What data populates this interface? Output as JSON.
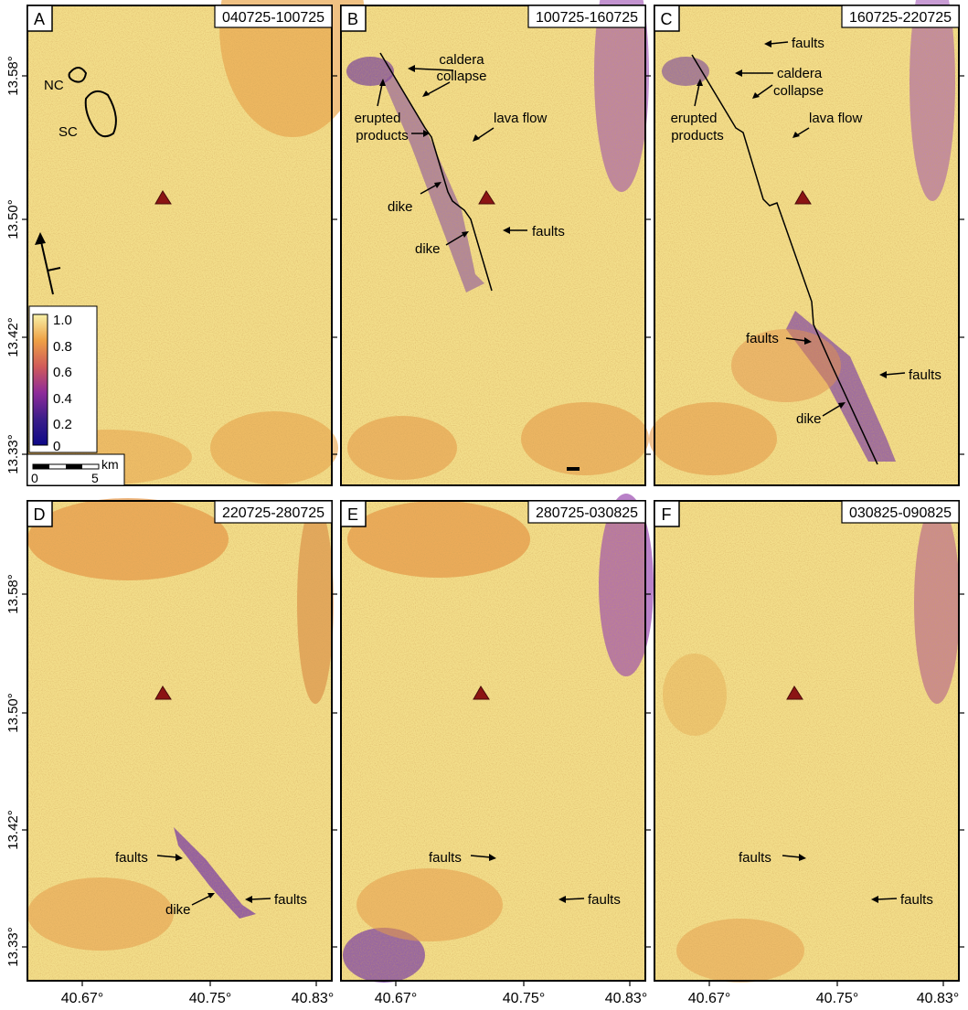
{
  "figure": {
    "x_ticks": [
      "40.67°",
      "40.75°",
      "40.83°"
    ],
    "y_ticks": [
      "13.58°",
      "13.50°",
      "13.42°",
      "13.33°"
    ],
    "colorbar": {
      "ticks": [
        "1.0",
        "0.8",
        "0.6",
        "0.4",
        "0.2",
        "0"
      ]
    },
    "scalebar": {
      "start": "0",
      "mid": "5",
      "unit": "km"
    },
    "colors": {
      "high": "#f6ea9a",
      "mid": "#e8a845",
      "low": "#7a3fa8",
      "volcano": "#8b1414"
    },
    "panels": [
      {
        "letter": "A",
        "date": "040725-100725",
        "labels": [
          {
            "text": "NC"
          },
          {
            "text": "SC"
          }
        ]
      },
      {
        "letter": "B",
        "date": "100725-160725",
        "labels": [
          {
            "text": "caldera"
          },
          {
            "text": "collapse"
          },
          {
            "text": "erupted"
          },
          {
            "text": "products"
          },
          {
            "text": "lava flow"
          },
          {
            "text": "dike"
          },
          {
            "text": "dike"
          },
          {
            "text": "faults"
          }
        ]
      },
      {
        "letter": "C",
        "date": "160725-220725",
        "labels": [
          {
            "text": "faults"
          },
          {
            "text": "caldera"
          },
          {
            "text": "collapse"
          },
          {
            "text": "erupted"
          },
          {
            "text": "products"
          },
          {
            "text": "lava flow"
          },
          {
            "text": "faults"
          },
          {
            "text": "faults"
          },
          {
            "text": "dike"
          }
        ]
      },
      {
        "letter": "D",
        "date": "220725-280725",
        "labels": [
          {
            "text": "faults"
          },
          {
            "text": "dike"
          },
          {
            "text": "faults"
          }
        ]
      },
      {
        "letter": "E",
        "date": "280725-030825",
        "labels": [
          {
            "text": "faults"
          },
          {
            "text": "faults"
          }
        ]
      },
      {
        "letter": "F",
        "date": "030825-090825",
        "labels": [
          {
            "text": "faults"
          },
          {
            "text": "faults"
          }
        ]
      }
    ]
  }
}
